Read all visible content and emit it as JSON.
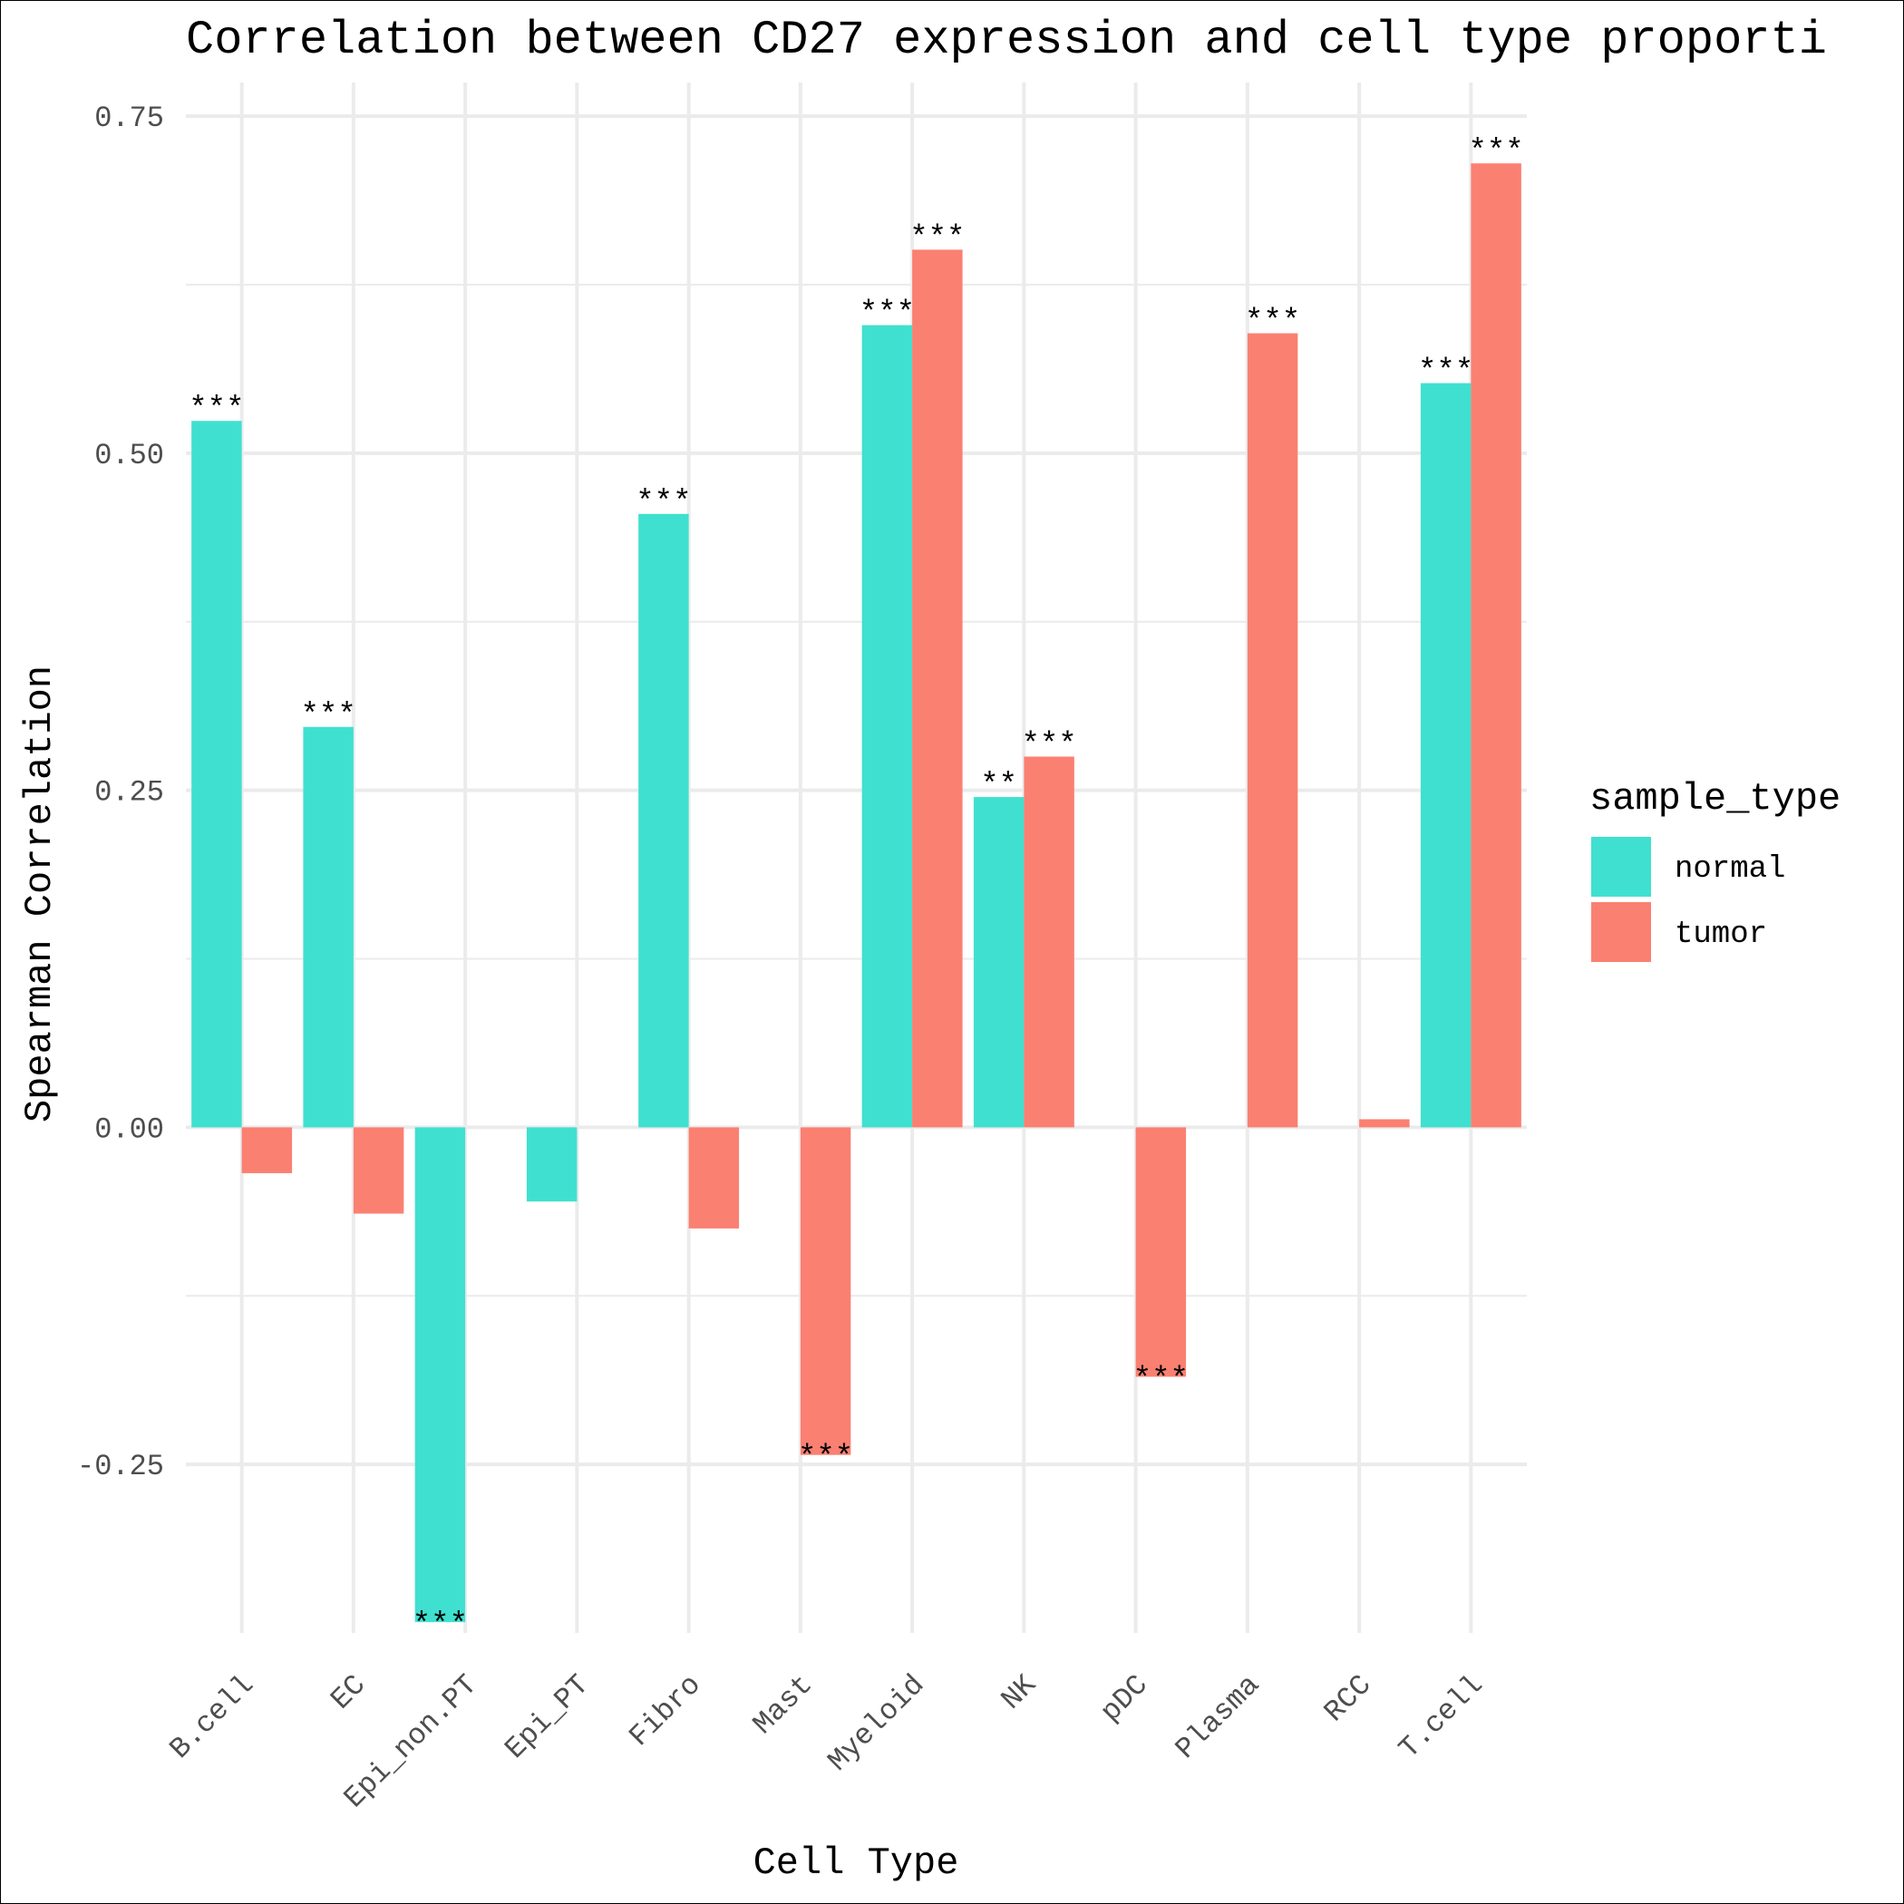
{
  "chart_data": {
    "type": "bar",
    "title": "Correlation between CD27 expression and cell type proporti",
    "xlabel": "Cell Type",
    "ylabel": "Spearman Correlation",
    "ylim": [
      -0.375,
      0.775
    ],
    "yticks": [
      -0.25,
      0.0,
      0.25,
      0.5,
      0.75
    ],
    "ytick_labels": [
      "-0.25",
      "0.00",
      "0.25",
      "0.50",
      "0.75"
    ],
    "grid": true,
    "legend_position": "right",
    "legend_title": "sample_type",
    "categories": [
      "B.cell",
      "EC",
      "Epi_non.PT",
      "Epi_PT",
      "Fibro",
      "Mast",
      "Myeloid",
      "NK",
      "pDC",
      "Plasma",
      "RCC",
      "T.cell"
    ],
    "series": [
      {
        "name": "normal",
        "color": "#40E0D0",
        "values": [
          0.524,
          0.297,
          -0.367,
          -0.055,
          0.455,
          null,
          0.595,
          0.245,
          null,
          null,
          null,
          0.552
        ],
        "significance": [
          "***",
          "***",
          "***",
          "",
          "***",
          "",
          "***",
          "**",
          "",
          "",
          "",
          "***"
        ]
      },
      {
        "name": "tumor",
        "color": "#FA8072",
        "values": [
          -0.034,
          -0.064,
          null,
          null,
          -0.075,
          -0.243,
          0.651,
          0.275,
          -0.185,
          0.589,
          0.006,
          0.715
        ],
        "significance": [
          "",
          "",
          "",
          "",
          "",
          "***",
          "***",
          "***",
          "***",
          "***",
          "",
          "***"
        ]
      }
    ]
  }
}
